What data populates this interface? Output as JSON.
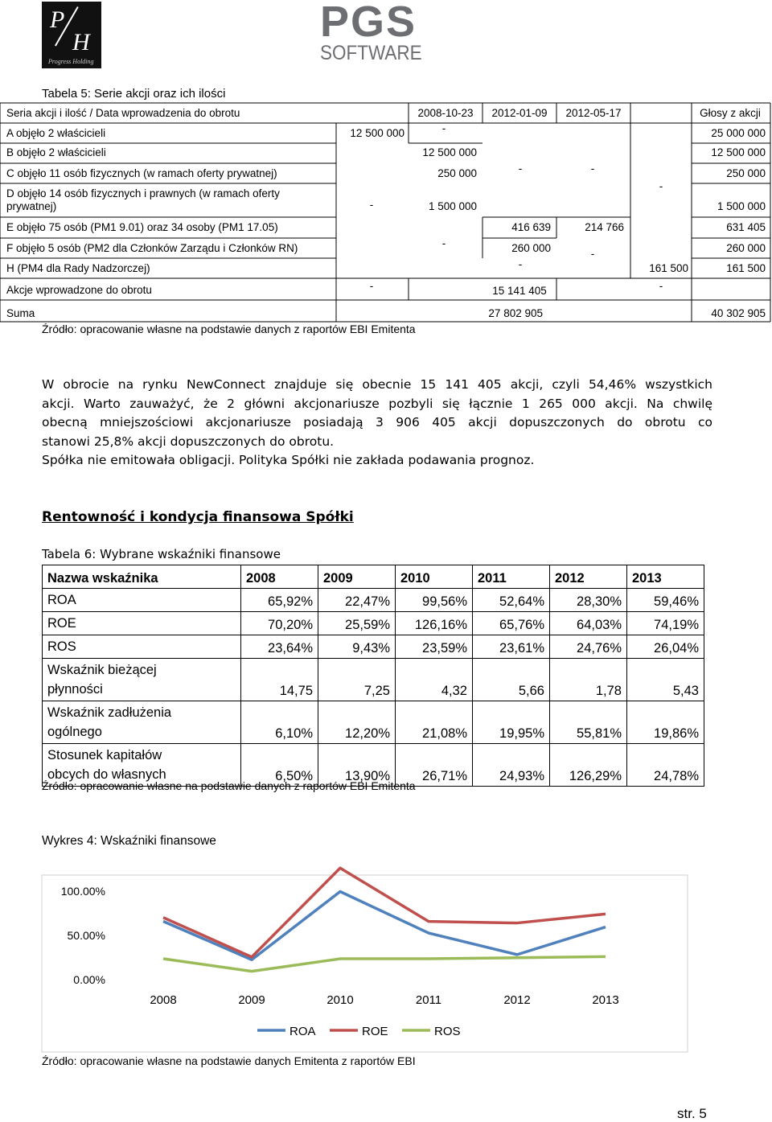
{
  "logos": {
    "left": {
      "letters": [
        "P",
        "H"
      ],
      "caption": "Progress Holding"
    },
    "right": {
      "name": "PGS",
      "sub": "SOFTWARE"
    }
  },
  "table5": {
    "caption": "Tabela 5: Serie akcji oraz ich ilości",
    "header": [
      "Seria akcji i ilość / Data wprowadzenia do obrotu",
      "2008-10-23",
      "2012-01-09",
      "2012-05-17",
      "Głosy z akcji"
    ],
    "rows": [
      {
        "label": "A objęło 2 właścicieli",
        "cells": [
          "12 500 000",
          "-",
          "25 000 000"
        ]
      },
      {
        "label": "B objęło 2 właścicieli",
        "cells": [
          "12 500 000",
          "12 500 000"
        ]
      },
      {
        "label": "C objęło 11 osób fizycznych (w ramach oferty prywatnej)",
        "cells": [
          "250 000",
          "-",
          "-",
          "250 000"
        ]
      },
      {
        "label": "D objęło 14 osób fizycznych i prawnych (w ramach oferty prywatnej)",
        "cells": [
          "-",
          "1 500 000",
          "-",
          "1 500 000"
        ]
      },
      {
        "label": "E objęło 75 osób (PM1 9.01) oraz 34 osoby (PM1 17.05)",
        "cells": [
          "416 639",
          "214 766",
          "631 405"
        ]
      },
      {
        "label": "F objęło  5 osób (PM2 dla Członków Zarządu i Członków RN)",
        "cells": [
          "-",
          "260 000",
          "260 000"
        ]
      },
      {
        "label": "H (PM4 dla Rady Nadzorczej)",
        "cells": [
          "-",
          "-",
          "161 500",
          "161 500"
        ]
      },
      {
        "label": "Akcje wprowadzone do obrotu",
        "cells": [
          "-",
          "15 141 405",
          "-"
        ]
      },
      {
        "label": "Suma",
        "cells": [
          "27 802 905",
          "40 302 905"
        ]
      }
    ],
    "source": "Źródło: opracowanie własne na podstawie danych z raportów EBI Emitenta"
  },
  "paragraph": [
    "W obrocie na rynku NewConnect znajduje się obecnie 15 141 405 akcji, czyli 54,46% wszystkich",
    "akcji. Warto zauważyć, że 2 główni akcjonariusze pozbyli się łącznie 1 265 000 akcji. Na chwilę",
    "obecną mniejszościowi akcjonariusze posiadają 3 906 405 akcji dopuszczonych do obrotu co",
    "stanowi 25,8% akcji dopuszczonych do obrotu.",
    "Spółka nie emitowała obligacji. Polityka Spółki nie zakłada podawania prognoz."
  ],
  "heading": "Rentowność i kondycja finansowa Spółki",
  "table6": {
    "caption": "Tabela 6: Wybrane wskaźniki finansowe",
    "header": [
      "Nazwa wskaźnika",
      "2008",
      "2009",
      "2010",
      "2011",
      "2012",
      "2013"
    ],
    "rows": [
      [
        "ROA",
        "65,92%",
        "22,47%",
        "99,56%",
        "52,64%",
        "28,30%",
        "59,46%"
      ],
      [
        "ROE",
        "70,20%",
        "25,59%",
        "126,16%",
        "65,76%",
        "64,03%",
        "74,19%"
      ],
      [
        "ROS",
        "23,64%",
        "9,43%",
        "23,59%",
        "23,61%",
        "24,76%",
        "26,04%"
      ],
      [
        "Wskaźnik bieżącej płynności",
        "14,75",
        "7,25",
        "4,32",
        "5,66",
        "1,78",
        "5,43"
      ],
      [
        "Wskaźnik zadłużenia ogólnego",
        "6,10%",
        "12,20%",
        "21,08%",
        "19,95%",
        "55,81%",
        "19,86%"
      ],
      [
        "Stosunek kapitałów obcych do własnych",
        "6,50%",
        "13,90%",
        "26,71%",
        "24,93%",
        "126,29%",
        "24,78%"
      ]
    ],
    "source": "Źródło: opracowanie własne na podstawie danych z raportów EBI Emitenta"
  },
  "chart_data": {
    "type": "line",
    "title": "Wykres 4: Wskaźniki finansowe",
    "categories": [
      "2008",
      "2009",
      "2010",
      "2011",
      "2012",
      "2013"
    ],
    "series": [
      {
        "name": "ROA",
        "color": "#4f81bd",
        "values": [
          65.92,
          22.47,
          99.56,
          52.64,
          28.3,
          59.46
        ]
      },
      {
        "name": "ROE",
        "color": "#c0504d",
        "values": [
          70.2,
          25.59,
          126.16,
          65.76,
          64.03,
          74.19
        ]
      },
      {
        "name": "ROS",
        "color": "#9bbb59",
        "values": [
          23.64,
          9.43,
          23.59,
          23.61,
          24.76,
          26.04
        ]
      }
    ],
    "ylim": [
      0,
      130
    ],
    "yticks": [
      {
        "value": 0,
        "label": "0.00%"
      },
      {
        "value": 50,
        "label": "50.00%"
      },
      {
        "value": 100,
        "label": "100.00%"
      }
    ],
    "grid": false,
    "legend": "bottom",
    "source": "Źródło: opracowanie własne na podstawie danych Emitenta z raportów EBI"
  },
  "footer": "str. 5"
}
